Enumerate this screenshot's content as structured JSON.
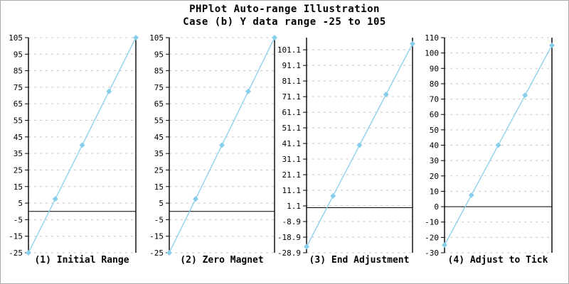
{
  "title": {
    "line1": "PHPlot Auto-range Illustration",
    "line2": "Case (b) Y data range -25 to 105"
  },
  "colors": {
    "data_line": "#87CEEB",
    "grid": "#C8C8C8",
    "axis": "#000000",
    "text": "#000000",
    "image_border": "#AAAAAA",
    "background": "#FFFFFF"
  },
  "chart_data": [
    {
      "type": "line",
      "title": "(1) Initial Range",
      "y": [
        -25,
        7.5,
        40,
        72.5,
        105
      ],
      "ylim": [
        -25,
        105
      ],
      "yticks": [
        -25,
        -15,
        -5,
        5,
        15,
        25,
        35,
        45,
        55,
        65,
        75,
        85,
        95,
        105
      ],
      "ytick_labels": [
        "-25",
        "-15",
        "-5",
        "5",
        "15",
        "25",
        "35",
        "45",
        "55",
        "65",
        "75",
        "85",
        "95",
        "105"
      ],
      "x_axis_at": 0,
      "grid": "dashed-horizontal",
      "marker": "diamond",
      "legend": "none"
    },
    {
      "type": "line",
      "title": "(2) Zero Magnet",
      "y": [
        -25,
        7.5,
        40,
        72.5,
        105
      ],
      "ylim": [
        -25,
        105
      ],
      "yticks": [
        -25,
        -15,
        -5,
        5,
        15,
        25,
        35,
        45,
        55,
        65,
        75,
        85,
        95,
        105
      ],
      "ytick_labels": [
        "-25",
        "-15",
        "-5",
        "5",
        "15",
        "25",
        "35",
        "45",
        "55",
        "65",
        "75",
        "85",
        "95",
        "105"
      ],
      "x_axis_at": 0,
      "grid": "dashed-horizontal",
      "marker": "diamond",
      "legend": "none"
    },
    {
      "type": "line",
      "title": "(3) End Adjustment",
      "y": [
        -25,
        7.5,
        40,
        72.5,
        105
      ],
      "ylim": [
        -28.9,
        108.9
      ],
      "yticks": [
        -28.9,
        -18.9,
        -8.9,
        1.1,
        11.1,
        21.1,
        31.1,
        41.1,
        51.1,
        61.1,
        71.1,
        81.1,
        91.1,
        101.1
      ],
      "ytick_labels": [
        "-28.9",
        "-18.9",
        "-8.9",
        "1.1",
        "11.1",
        "21.1",
        "31.1",
        "41.1",
        "51.1",
        "61.1",
        "71.1",
        "81.1",
        "91.1",
        "101.1"
      ],
      "x_axis_at": 0,
      "grid": "dashed-horizontal",
      "marker": "diamond",
      "legend": "none"
    },
    {
      "type": "line",
      "title": "(4) Adjust to Tick",
      "y": [
        -25,
        7.5,
        40,
        72.5,
        105
      ],
      "ylim": [
        -30,
        110
      ],
      "yticks": [
        -30,
        -20,
        -10,
        0,
        10,
        20,
        30,
        40,
        50,
        60,
        70,
        80,
        90,
        100,
        110
      ],
      "ytick_labels": [
        "-30",
        "-20",
        "-10",
        "0",
        "10",
        "20",
        "30",
        "40",
        "50",
        "60",
        "70",
        "80",
        "90",
        "100",
        "110"
      ],
      "x_axis_at": 0,
      "grid": "dashed-horizontal",
      "marker": "diamond",
      "legend": "none"
    }
  ]
}
